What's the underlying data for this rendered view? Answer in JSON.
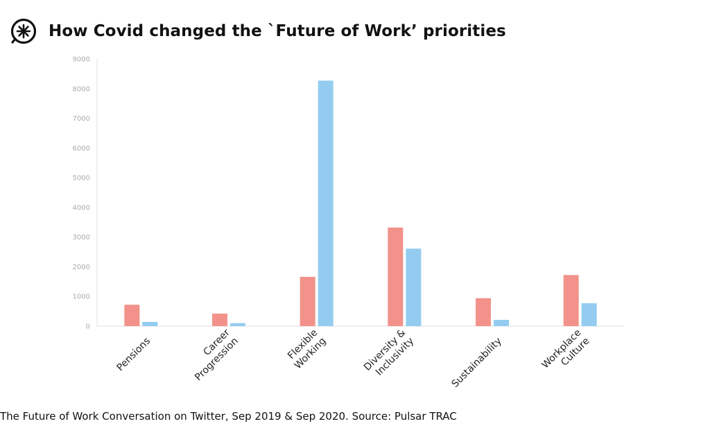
{
  "header": {
    "title": "How Covid changed the `Future of Work’ priorities",
    "logo_icon": "asterisk-circle-logo"
  },
  "caption": "The Future of Work Conversation on Twitter, Sep 2019 & Sep 2020.  Source: Pulsar TRAC",
  "chart_data": {
    "type": "bar",
    "title": "How Covid changed the `Future of Work’ priorities",
    "xlabel": "",
    "ylabel": "",
    "ylim": [
      0,
      9000
    ],
    "yticks": [
      0,
      1000,
      2000,
      3000,
      4000,
      5000,
      6000,
      7000,
      8000,
      9000
    ],
    "grid": false,
    "categories": [
      [
        "Pensions"
      ],
      [
        "Career",
        "Progression"
      ],
      [
        "Flexible",
        "Working"
      ],
      [
        "Diversity &",
        "Inclusivity"
      ],
      [
        "Sustainability"
      ],
      [
        "Workplace",
        "Culture"
      ]
    ],
    "series": [
      {
        "values": [
          720,
          420,
          1660,
          3320,
          940,
          1720
        ],
        "color": "#f2928a"
      },
      {
        "values": [
          140,
          100,
          8270,
          2610,
          210,
          770
        ],
        "color": "#93ccf0"
      }
    ]
  }
}
